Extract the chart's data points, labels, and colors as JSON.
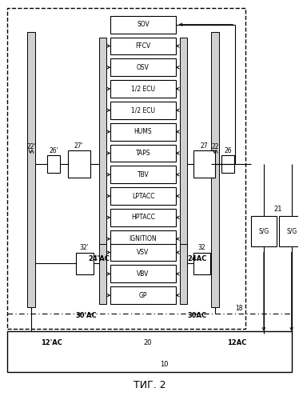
{
  "fig_width": 3.74,
  "fig_height": 5.0,
  "dpi": 100,
  "bg_color": "#ffffff",
  "upper_boxes": [
    "SOV",
    "FFCV",
    "OSV",
    "1/2 ECU",
    "1/2 ECU",
    "HUMS",
    "TAPS",
    "TBV",
    "LPTACC",
    "HPTACC",
    "IGNITION"
  ],
  "lower_boxes": [
    "VSV",
    "VBV",
    "GP"
  ],
  "label_24ac_left": "24'AC",
  "label_24ac_right": "24AC",
  "label_30ac_left": "30'AC",
  "label_30ac_right": "30AC",
  "label_12ac_left": "12'AC",
  "label_12ac_right": "12AC",
  "label_20": "20",
  "label_10": "10",
  "label_18": "18",
  "label_21": "21",
  "label_22_left": "22'",
  "label_26_left": "26'",
  "label_27_left": "27'",
  "label_22_right": "22",
  "label_26_right": "26",
  "label_27_right": "27",
  "label_32_left": "32'",
  "label_32_right": "32",
  "title": "ΤИГ. 2"
}
